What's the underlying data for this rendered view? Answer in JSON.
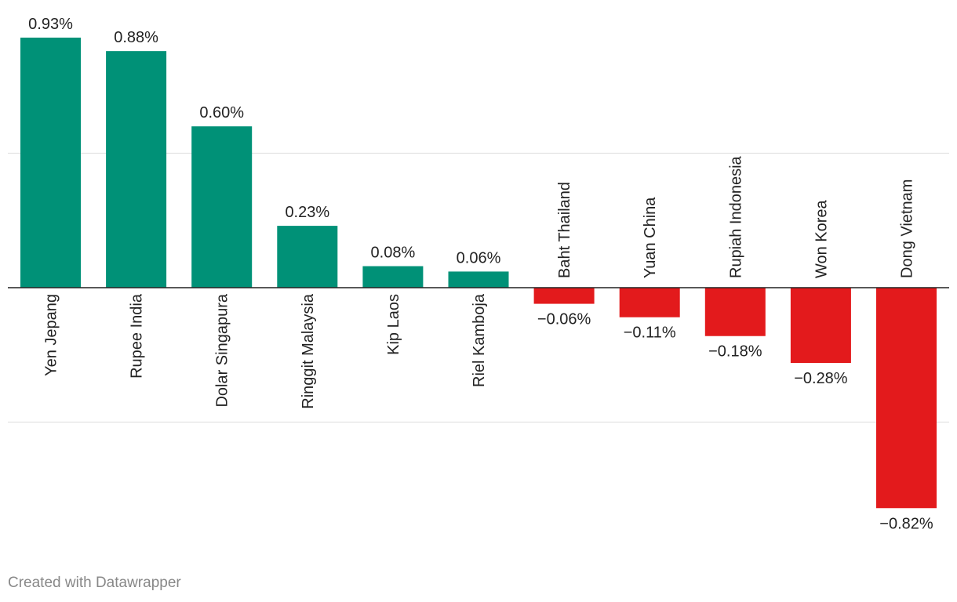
{
  "chart_data": {
    "type": "bar",
    "categories": [
      "Yen Jepang",
      "Rupee India",
      "Dolar Singapura",
      "Ringgit Malaysia",
      "Kip Laos",
      "Riel Kamboja",
      "Baht Thailand",
      "Yuan China",
      "Rupiah Indonesia",
      "Won Korea",
      "Dong Vietnam"
    ],
    "values": [
      0.93,
      0.88,
      0.6,
      0.23,
      0.08,
      0.06,
      -0.06,
      -0.11,
      -0.18,
      -0.28,
      -0.82
    ],
    "value_labels": [
      "0.93%",
      "0.88%",
      "0.60%",
      "0.23%",
      "0.08%",
      "0.06%",
      "−0.06%",
      "−0.11%",
      "−0.18%",
      "−0.28%",
      "−0.82%"
    ],
    "gridlines": [
      0.5,
      0,
      -0.5
    ],
    "ylim": [
      -0.82,
      0.93
    ],
    "grid": true,
    "colors": {
      "positive": "#009177",
      "negative": "#e31a1c",
      "grid": "#e2e2e2",
      "axis": "#222222"
    }
  },
  "footer": {
    "credit": "Created with Datawrapper"
  }
}
